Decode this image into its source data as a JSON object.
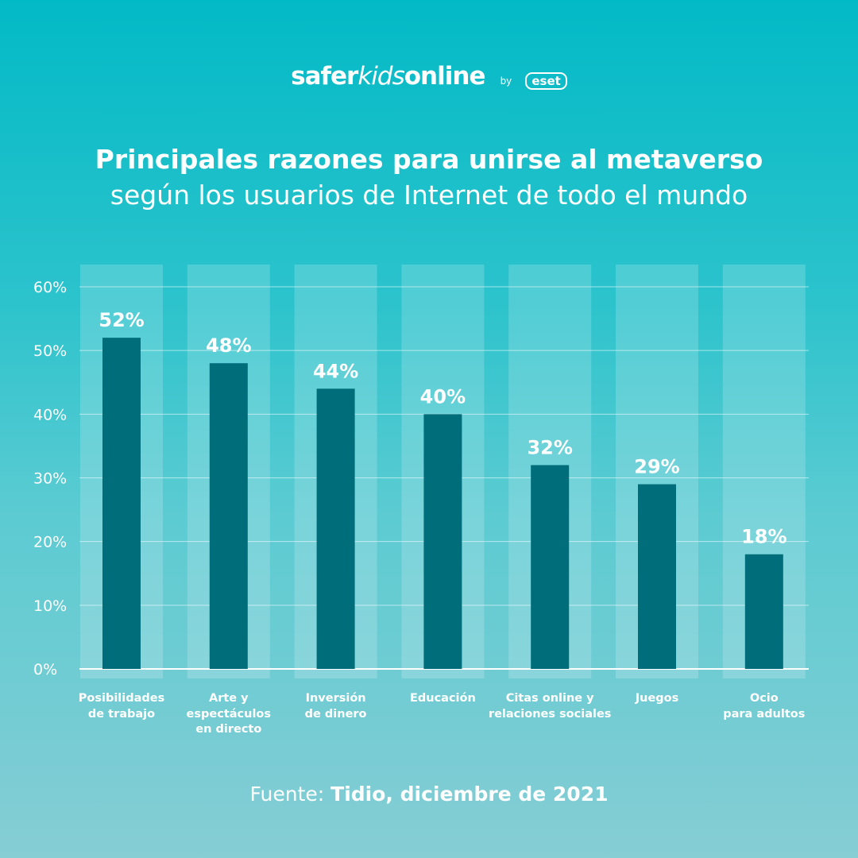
{
  "logo": {
    "brand_a": "safer",
    "brand_b": "kids",
    "brand_c": "online",
    "by": "by",
    "partner": "eset"
  },
  "title": {
    "line1": "Principales razones para unirse al metaverso",
    "line2": "según los usuarios de Internet de todo el mundo"
  },
  "source": {
    "label": "Fuente:",
    "value": "Tidio, diciembre de 2021"
  },
  "colors": {
    "bar": "#006d7a",
    "background_top": "#02bac6",
    "background_bottom": "#86cdd4",
    "column_band": "#ffffff"
  },
  "chart_data": {
    "type": "bar",
    "categories": [
      "Posibilidades\nde trabajo",
      "Arte y\nespectáculos\nen directo",
      "Inversión\nde dinero",
      "Educación",
      "Citas online y\nrelaciones sociales",
      "Juegos",
      "Ocio\npara adultos"
    ],
    "values": [
      52,
      48,
      44,
      40,
      32,
      29,
      18
    ],
    "data_labels": [
      "52%",
      "48%",
      "44%",
      "40%",
      "32%",
      "29%",
      "18%"
    ],
    "ylim": [
      0,
      60
    ],
    "yticks": [
      0,
      10,
      20,
      30,
      40,
      50,
      60
    ],
    "ytick_labels": [
      "0%",
      "10%",
      "20%",
      "30%",
      "40%",
      "50%",
      "60%"
    ],
    "grid": true,
    "title": "",
    "xlabel": "",
    "ylabel": ""
  }
}
